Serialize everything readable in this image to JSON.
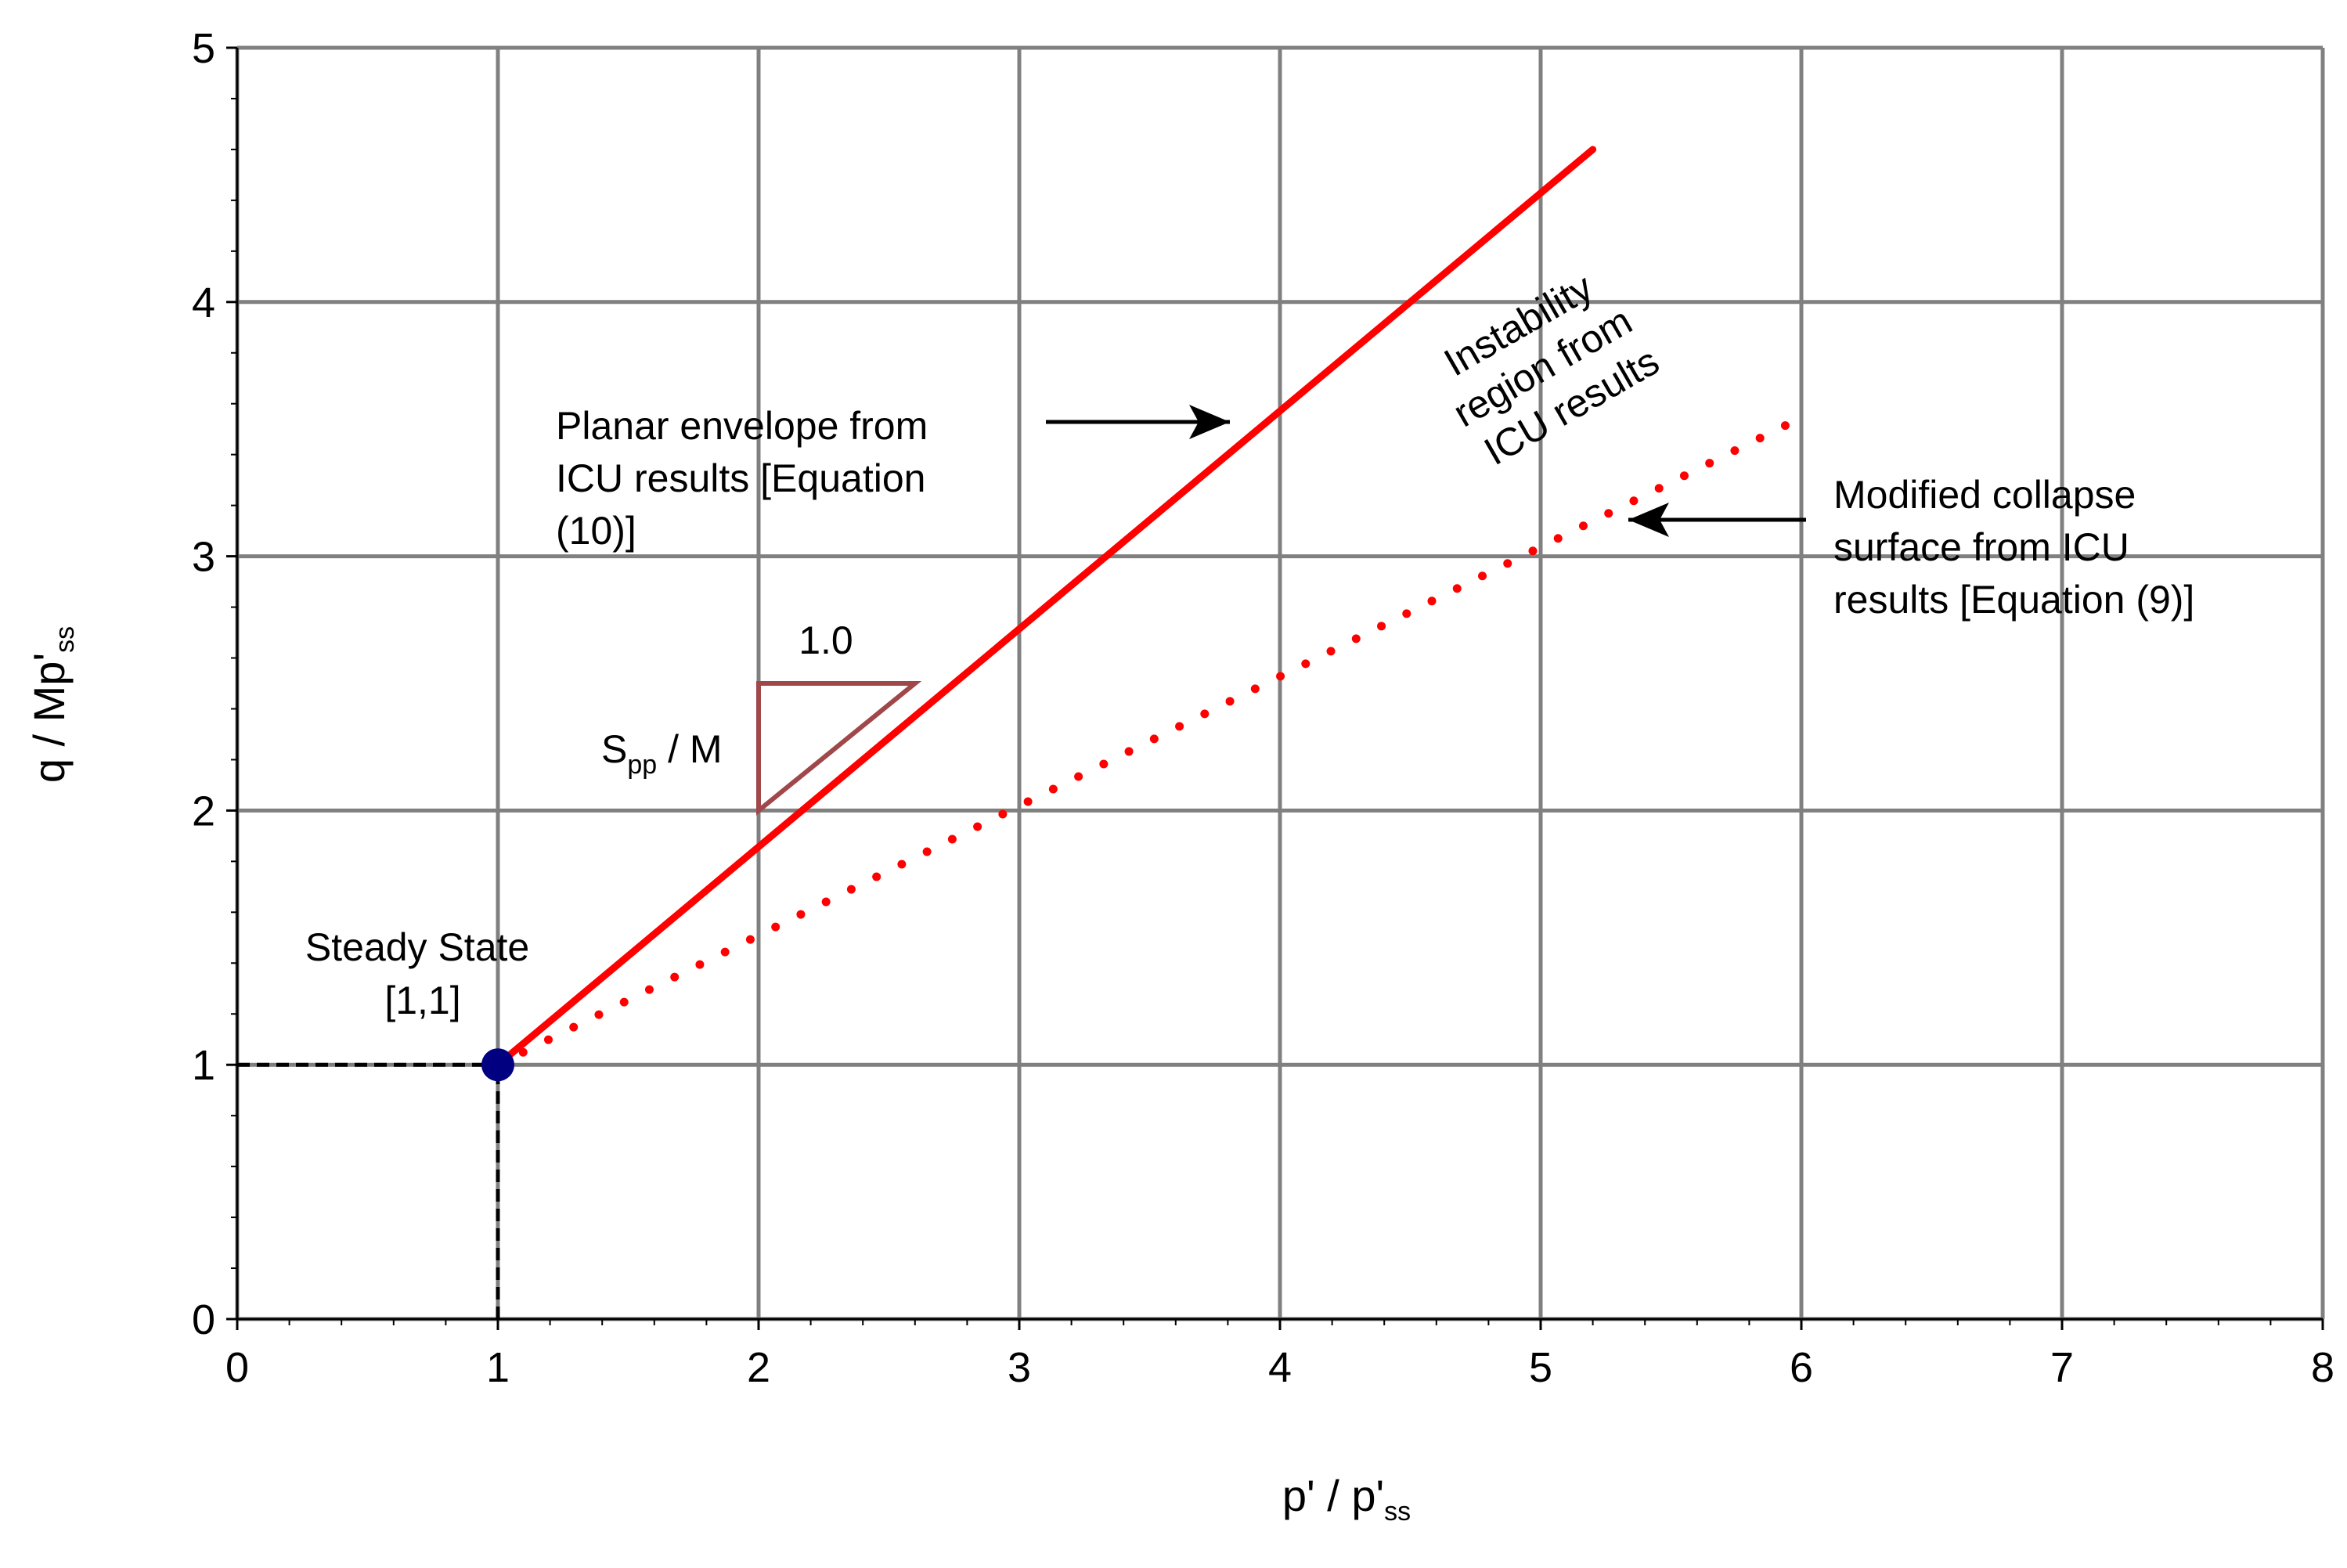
{
  "chart_data": {
    "type": "line",
    "title": "",
    "xlabel": {
      "main": "p' / p'",
      "sub": "ss"
    },
    "ylabel": {
      "main": "q / Mp'",
      "sub": "ss"
    },
    "xlim": [
      0,
      8
    ],
    "ylim": [
      0,
      5
    ],
    "xticks": [
      "0",
      "1",
      "2",
      "3",
      "4",
      "5",
      "6",
      "7",
      "8"
    ],
    "yticks": [
      "0",
      "1",
      "2",
      "3",
      "4",
      "5"
    ],
    "grid": true,
    "series": [
      {
        "name": "Planar envelope from ICU results [Equation (10)]",
        "style": "solid",
        "color": "#ff0000",
        "x": [
          1.0,
          5.2
        ],
        "y": [
          1.0,
          4.6
        ]
      },
      {
        "name": "Modified collapse surface from ICU results [Equation (9)]",
        "style": "dotted",
        "color": "#ff0000",
        "x": [
          1.0,
          5.95
        ],
        "y": [
          1.0,
          3.52
        ]
      },
      {
        "name": "Steady state reference (horizontal)",
        "style": "dashed",
        "color": "#000000",
        "x": [
          0,
          1
        ],
        "y": [
          1,
          1
        ]
      },
      {
        "name": "Steady state reference (vertical)",
        "style": "dashed",
        "color": "#000000",
        "x": [
          1,
          1
        ],
        "y": [
          0,
          1
        ]
      }
    ],
    "points": [
      {
        "name": "Steady State",
        "x": 1,
        "y": 1,
        "color": "#000080"
      }
    ],
    "slope_triangle": {
      "corner": [
        2.0,
        2.5
      ],
      "run": 0.6,
      "rise": 0.5,
      "color": "#a0474a",
      "run_label": "1.0",
      "rise_label": {
        "main": "S",
        "sub": "pp",
        "suffix": " / M"
      }
    },
    "annotations": {
      "planar_lines": [
        "Planar envelope from",
        "ICU results  [Equation",
        "(10)]"
      ],
      "modified_lines": [
        "Modified collapse",
        "surface from ICU",
        "results [Equation (9)]"
      ],
      "instability_lines": [
        "Instability",
        "region from",
        "ICU results"
      ],
      "steady_lines": [
        "Steady State",
        "[1,1]"
      ]
    },
    "colors": {
      "grid": "#808080",
      "axis": "#000000",
      "red": "#ff0000",
      "navy": "#000080"
    }
  }
}
